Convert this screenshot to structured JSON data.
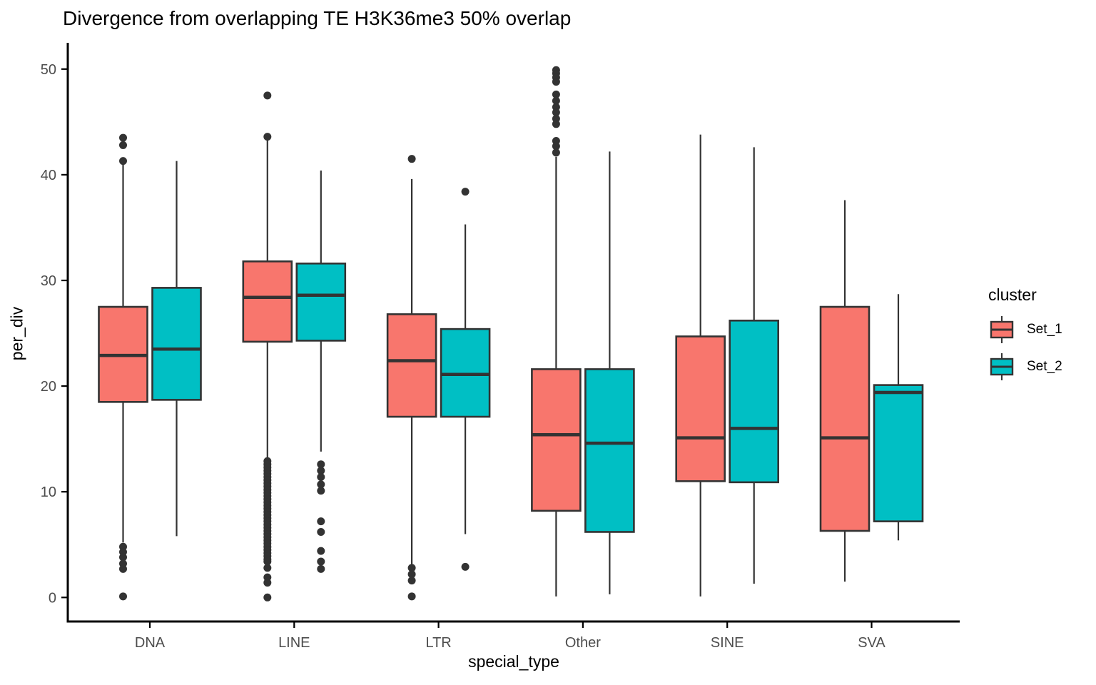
{
  "chart_data": {
    "type": "boxplot",
    "title": "Divergence from overlapping TE H3K36me3 50% overlap",
    "xlabel": "special_type",
    "ylabel": "per_div",
    "categories": [
      "DNA",
      "LINE",
      "LTR",
      "Other",
      "SINE",
      "SVA"
    ],
    "yticks": [
      0,
      10,
      20,
      30,
      40,
      50
    ],
    "ylim": [
      -2.3,
      52.5
    ],
    "grid": false,
    "legend": {
      "title": "cluster",
      "position": "right",
      "entries": [
        {
          "name": "Set_1",
          "color": "#F8766D"
        },
        {
          "name": "Set_2",
          "color": "#00BFC4"
        }
      ]
    },
    "axis_colors": {
      "line": "#000000",
      "tick_label": "#4d4d4d",
      "box_stroke": "#333333",
      "outlier": "#333333"
    },
    "series": [
      {
        "name": "Set_1",
        "color": "#F8766D",
        "boxes": [
          {
            "category": "DNA",
            "whisker_low": 5.2,
            "q1": 18.5,
            "median": 22.9,
            "q3": 27.5,
            "whisker_high": 41.2,
            "outliers_high": [
              43.5,
              42.8,
              41.3
            ],
            "outliers_low": [
              4.8,
              4.3,
              3.8,
              3.2,
              2.7,
              0.1
            ]
          },
          {
            "category": "LINE",
            "whisker_low": 13.1,
            "q1": 24.2,
            "median": 28.4,
            "q3": 31.8,
            "whisker_high": 43.4,
            "outliers_high": [
              47.5,
              43.6
            ],
            "outliers_low": [
              12.9,
              12.6,
              12.3,
              12.0,
              11.7,
              11.4,
              11.1,
              10.8,
              10.5,
              10.2,
              9.9,
              9.6,
              9.3,
              9.0,
              8.7,
              8.4,
              8.1,
              7.8,
              7.5,
              7.2,
              6.9,
              6.6,
              6.3,
              6.0,
              5.7,
              5.4,
              5.1,
              4.8,
              4.5,
              4.2,
              3.9,
              3.6,
              3.4,
              2.8,
              1.9,
              1.4,
              0.0
            ]
          },
          {
            "category": "LTR",
            "whisker_low": 3.1,
            "q1": 17.1,
            "median": 22.4,
            "q3": 26.8,
            "whisker_high": 39.6,
            "outliers_high": [
              41.5
            ],
            "outliers_low": [
              2.8,
              2.2,
              1.6,
              0.1
            ]
          },
          {
            "category": "Other",
            "whisker_low": 0.1,
            "q1": 8.2,
            "median": 15.4,
            "q3": 21.6,
            "whisker_high": 41.7,
            "outliers_high": [
              49.9,
              49.6,
              49.2,
              48.8,
              47.6,
              47.0,
              46.4,
              45.9,
              45.3,
              44.8,
              43.2,
              42.7,
              42.1
            ],
            "outliers_low": []
          },
          {
            "category": "SINE",
            "whisker_low": 0.1,
            "q1": 11.0,
            "median": 15.1,
            "q3": 24.7,
            "whisker_high": 43.8,
            "outliers_high": [],
            "outliers_low": []
          },
          {
            "category": "SVA",
            "whisker_low": 1.5,
            "q1": 6.3,
            "median": 15.1,
            "q3": 27.5,
            "whisker_high": 37.6,
            "outliers_high": [],
            "outliers_low": []
          }
        ]
      },
      {
        "name": "Set_2",
        "color": "#00BFC4",
        "boxes": [
          {
            "category": "DNA",
            "whisker_low": 5.8,
            "q1": 18.7,
            "median": 23.5,
            "q3": 29.3,
            "whisker_high": 41.3,
            "outliers_high": [],
            "outliers_low": []
          },
          {
            "category": "LINE",
            "whisker_low": 13.8,
            "q1": 24.3,
            "median": 28.6,
            "q3": 31.6,
            "whisker_high": 40.4,
            "outliers_high": [],
            "outliers_low": [
              12.6,
              12.0,
              11.4,
              10.7,
              10.1,
              7.2,
              6.2,
              4.4,
              3.4,
              2.7
            ]
          },
          {
            "category": "LTR",
            "whisker_low": 6.0,
            "q1": 17.1,
            "median": 21.1,
            "q3": 25.4,
            "whisker_high": 35.3,
            "outliers_high": [
              38.4
            ],
            "outliers_low": [
              2.9
            ]
          },
          {
            "category": "Other",
            "whisker_low": 0.3,
            "q1": 6.2,
            "median": 14.6,
            "q3": 21.6,
            "whisker_high": 42.2,
            "outliers_high": [],
            "outliers_low": []
          },
          {
            "category": "SINE",
            "whisker_low": 1.3,
            "q1": 10.9,
            "median": 16.0,
            "q3": 26.2,
            "whisker_high": 42.6,
            "outliers_high": [],
            "outliers_low": []
          },
          {
            "category": "SVA",
            "whisker_low": 5.4,
            "q1": 7.2,
            "median": 19.4,
            "q3": 20.1,
            "whisker_high": 28.7,
            "outliers_high": [],
            "outliers_low": []
          }
        ]
      }
    ]
  }
}
